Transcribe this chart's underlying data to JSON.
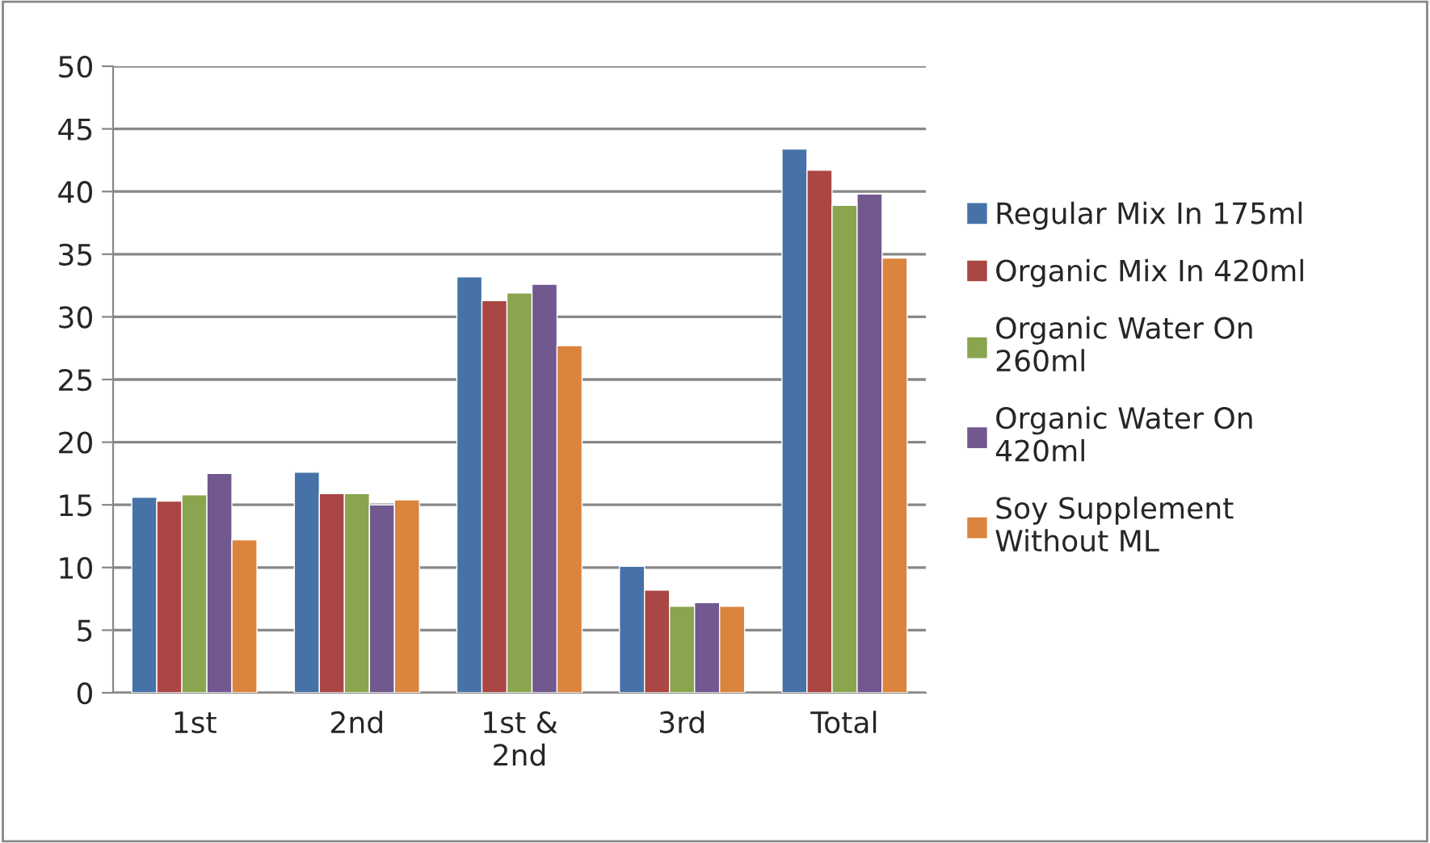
{
  "chart_data": {
    "type": "bar",
    "categories": [
      "1st",
      "2nd",
      "1st &\n2nd",
      "3rd",
      "Total"
    ],
    "series": [
      {
        "name": "Regular Mix In 175ml",
        "color": "#4672a8",
        "values": [
          15.6,
          17.6,
          33.2,
          10.1,
          43.4
        ]
      },
      {
        "name": "Organic Mix In 420ml",
        "color": "#aa4644",
        "values": [
          15.3,
          15.9,
          31.3,
          8.2,
          41.7
        ]
      },
      {
        "name": "Organic Water On\n260ml",
        "color": "#89a54e",
        "values": [
          15.8,
          15.9,
          31.9,
          6.9,
          38.9
        ]
      },
      {
        "name": "Organic Water On\n420ml",
        "color": "#71588f",
        "values": [
          17.5,
          15.0,
          32.6,
          7.2,
          39.8
        ]
      },
      {
        "name": "Soy Supplement\nWithout ML",
        "color": "#db843d",
        "values": [
          12.2,
          15.4,
          27.7,
          6.9,
          34.7
        ]
      }
    ],
    "ylim": [
      0,
      50
    ],
    "yticks": [
      0,
      5,
      10,
      15,
      20,
      25,
      30,
      35,
      40,
      45,
      50
    ],
    "grid": "y",
    "legend": "right"
  }
}
